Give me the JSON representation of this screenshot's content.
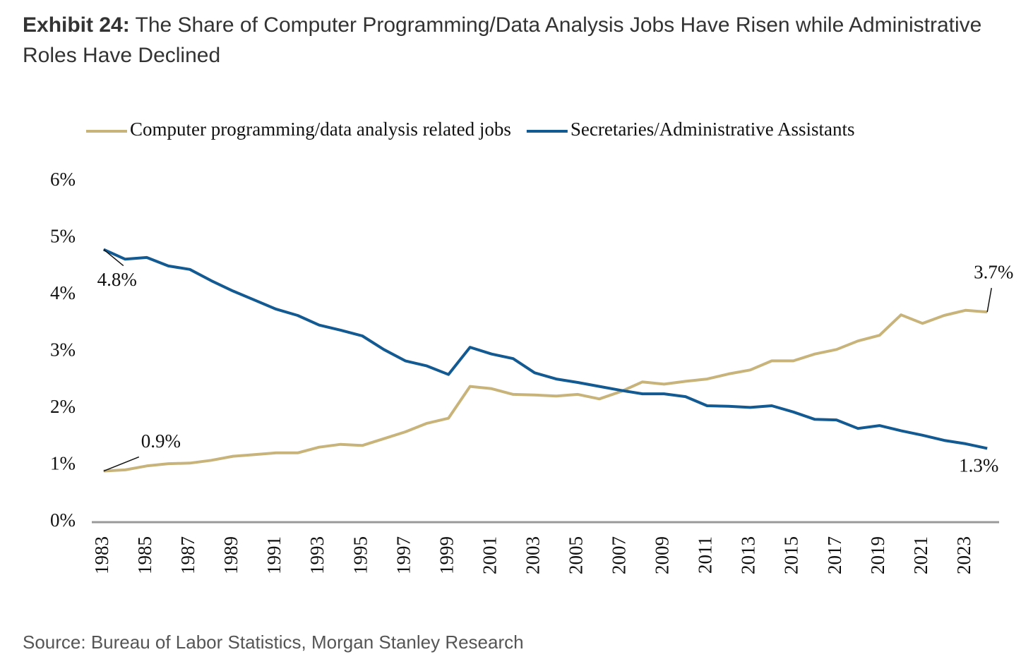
{
  "chart_data": {
    "type": "line",
    "exhibit": "Exhibit 24:",
    "title": "The Share of Computer Programming/Data Analysis Jobs Have Risen while Administrative Roles Have Declined",
    "source": "Source: Bureau of Labor Statistics, Morgan Stanley Research",
    "x": [
      1983,
      1984,
      1985,
      1986,
      1987,
      1988,
      1989,
      1990,
      1991,
      1992,
      1993,
      1994,
      1995,
      1996,
      1997,
      1998,
      1999,
      2000,
      2001,
      2002,
      2003,
      2004,
      2005,
      2006,
      2007,
      2008,
      2009,
      2010,
      2011,
      2012,
      2013,
      2014,
      2015,
      2016,
      2017,
      2018,
      2019,
      2020,
      2021,
      2022,
      2023,
      2024
    ],
    "xlim": [
      1982.45,
      2024.55
    ],
    "xticks": [
      1983,
      1985,
      1987,
      1989,
      1991,
      1993,
      1995,
      1997,
      1999,
      2001,
      2003,
      2005,
      2007,
      2009,
      2011,
      2013,
      2015,
      2017,
      2019,
      2021,
      2023
    ],
    "ylim": [
      0,
      6
    ],
    "yticks": [
      {
        "value": 0,
        "label": "0%"
      },
      {
        "value": 1,
        "label": "1%"
      },
      {
        "value": 2,
        "label": "2%"
      },
      {
        "value": 3,
        "label": "3%"
      },
      {
        "value": 4,
        "label": "4%"
      },
      {
        "value": 5,
        "label": "5%"
      },
      {
        "value": 6,
        "label": "6%"
      }
    ],
    "grid": false,
    "series": [
      {
        "name": "Computer programming/data analysis related jobs",
        "color": "#c8b47a",
        "values": [
          0.9,
          0.92,
          0.99,
          1.03,
          1.04,
          1.09,
          1.16,
          1.19,
          1.22,
          1.22,
          1.32,
          1.37,
          1.35,
          1.47,
          1.59,
          1.74,
          1.83,
          2.39,
          2.35,
          2.25,
          2.24,
          2.22,
          2.25,
          2.17,
          2.3,
          2.47,
          2.43,
          2.48,
          2.52,
          2.61,
          2.68,
          2.84,
          2.84,
          2.96,
          3.04,
          3.19,
          3.29,
          3.65,
          3.5,
          3.64,
          3.73,
          3.7
        ],
        "value_labels": [
          "0.9%",
          null,
          null,
          null,
          null,
          null,
          null,
          null,
          null,
          null,
          null,
          null,
          null,
          null,
          null,
          null,
          null,
          null,
          null,
          null,
          null,
          null,
          null,
          null,
          null,
          null,
          null,
          null,
          null,
          null,
          null,
          null,
          null,
          null,
          null,
          null,
          null,
          null,
          null,
          null,
          null,
          "3.7%"
        ]
      },
      {
        "name": "Secretaries/Administrative Assistants",
        "color": "#135a93",
        "values": [
          4.8,
          4.63,
          4.66,
          4.51,
          4.45,
          4.25,
          4.07,
          3.91,
          3.75,
          3.64,
          3.47,
          3.38,
          3.28,
          3.04,
          2.84,
          2.75,
          2.6,
          3.08,
          2.96,
          2.88,
          2.63,
          2.52,
          2.46,
          2.39,
          2.32,
          2.26,
          2.26,
          2.21,
          2.05,
          2.04,
          2.02,
          2.05,
          1.94,
          1.81,
          1.8,
          1.65,
          1.7,
          1.61,
          1.53,
          1.44,
          1.38,
          1.3
        ],
        "value_labels": [
          "4.8%",
          null,
          null,
          null,
          null,
          null,
          null,
          null,
          null,
          null,
          null,
          null,
          null,
          null,
          null,
          null,
          null,
          null,
          null,
          null,
          null,
          null,
          null,
          null,
          null,
          null,
          null,
          null,
          null,
          null,
          null,
          null,
          null,
          null,
          null,
          null,
          null,
          null,
          null,
          null,
          null,
          "1.3%"
        ]
      }
    ]
  }
}
